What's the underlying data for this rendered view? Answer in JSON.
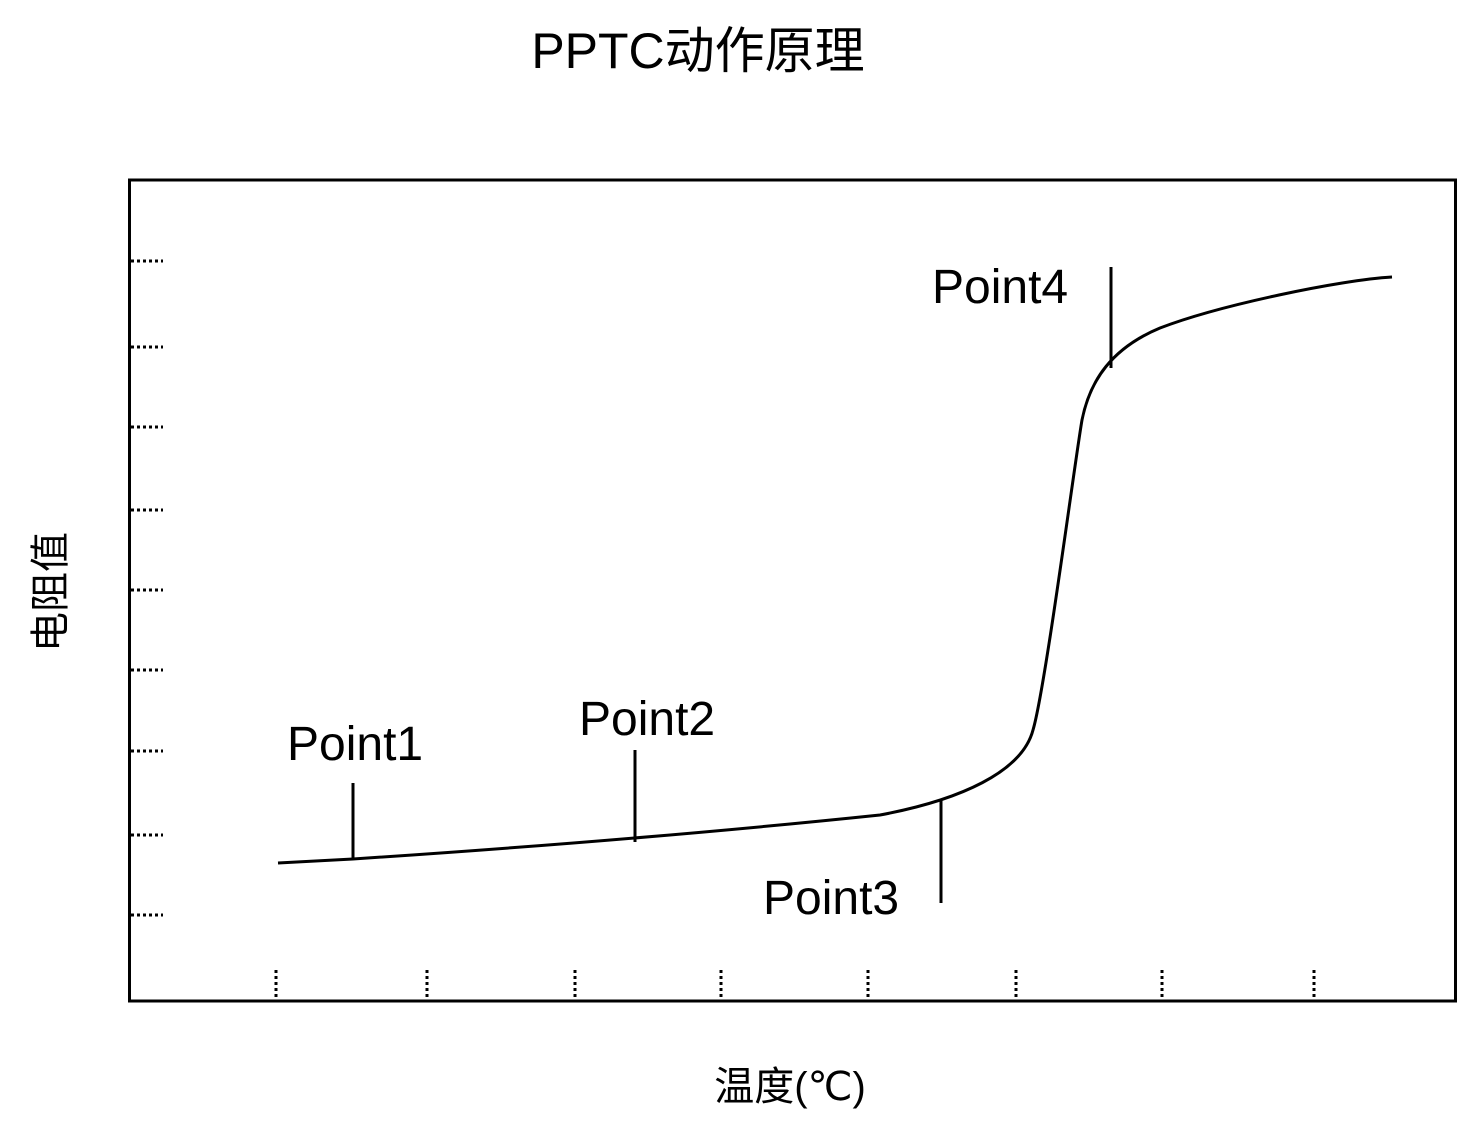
{
  "title": "PPTC动作原理",
  "y_axis_label": "电阻值",
  "x_axis_label": "温度(℃)",
  "points": [
    {
      "label": "Point1"
    },
    {
      "label": "Point2"
    },
    {
      "label": "Point3"
    },
    {
      "label": "Point4"
    }
  ],
  "colors": {
    "line": "#000000",
    "background": "#ffffff"
  }
}
